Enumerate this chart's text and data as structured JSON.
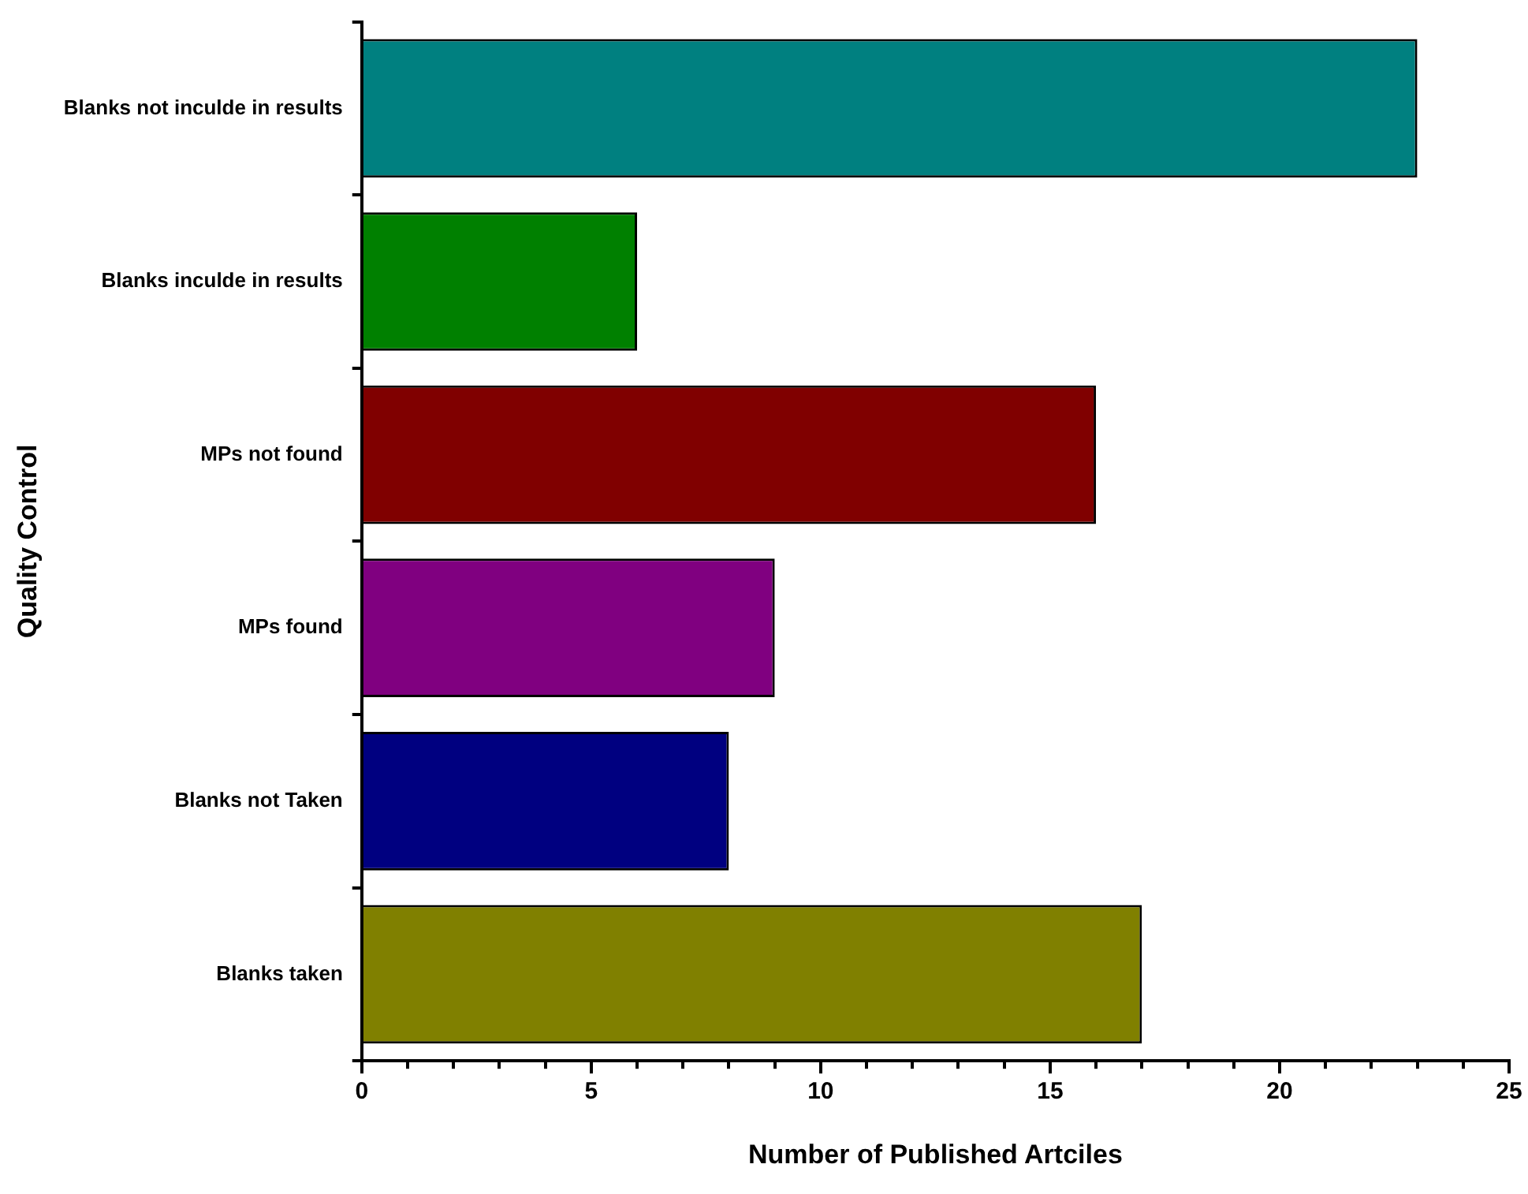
{
  "chart_data": {
    "type": "bar",
    "orientation": "horizontal",
    "xlabel": "Number of Published Artciles",
    "ylabel": "Quality Control",
    "categories": [
      "Blanks not inculde in results",
      "Blanks inculde in results",
      "MPs not found",
      "MPs found",
      "Blanks not Taken",
      "Blanks taken"
    ],
    "values": [
      23,
      6,
      16,
      9,
      8,
      17
    ],
    "colors": [
      "#008080",
      "#008000",
      "#800000",
      "#800080",
      "#000080",
      "#808000"
    ],
    "xlim": [
      0,
      25
    ],
    "xticks": [
      0,
      {
        "value": 1,
        "label": null
      },
      {
        "value": 2,
        "label": null
      },
      {
        "value": 3,
        "label": null
      },
      {
        "value": 4,
        "label": null
      },
      5,
      {
        "value": 6,
        "label": null
      },
      {
        "value": 7,
        "label": null
      },
      {
        "value": 8,
        "label": null
      },
      {
        "value": 9,
        "label": null
      },
      10,
      {
        "value": 11,
        "label": null
      },
      {
        "value": 12,
        "label": null
      },
      {
        "value": 13,
        "label": null
      },
      {
        "value": 14,
        "label": null
      },
      15,
      {
        "value": 16,
        "label": null
      },
      {
        "value": 17,
        "label": null
      },
      {
        "value": 18,
        "label": null
      },
      {
        "value": 19,
        "label": null
      },
      20,
      {
        "value": 21,
        "label": null
      },
      {
        "value": 22,
        "label": null
      },
      {
        "value": 23,
        "label": null
      },
      {
        "value": 24,
        "label": null
      },
      25
    ],
    "grid": false,
    "legend": false
  }
}
